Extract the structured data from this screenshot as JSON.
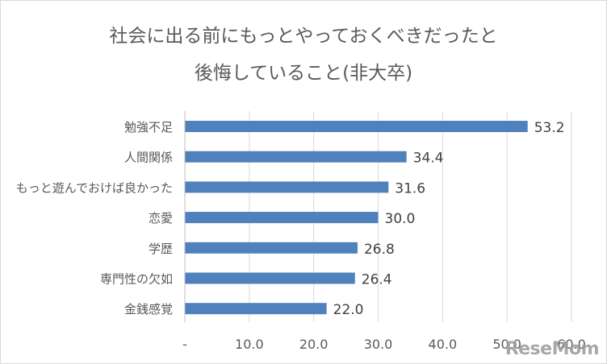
{
  "chart_data": {
    "type": "bar",
    "orientation": "horizontal",
    "title_lines": [
      "社会に出る前にもっとやっておくべきだったと",
      "後悔していること(非大卒)"
    ],
    "categories": [
      "勉強不足",
      "人間関係",
      "もっと遊んでおけば良かった",
      "恋愛",
      "学歴",
      "専門性の欠如",
      "金銭感覚"
    ],
    "values": [
      53.2,
      34.4,
      31.6,
      30.0,
      26.8,
      26.4,
      22.0
    ],
    "value_labels": [
      "53.2",
      "34.4",
      "31.6",
      "30.0",
      "26.8",
      "26.4",
      "22.0"
    ],
    "x_ticks": [
      "-",
      "10.0",
      "20.0",
      "30.0",
      "40.0",
      "50.0",
      "60.0"
    ],
    "xlim": [
      0,
      60
    ],
    "bar_color": "#4f81bd",
    "grid": "vertical"
  },
  "watermark": "ReseMom"
}
